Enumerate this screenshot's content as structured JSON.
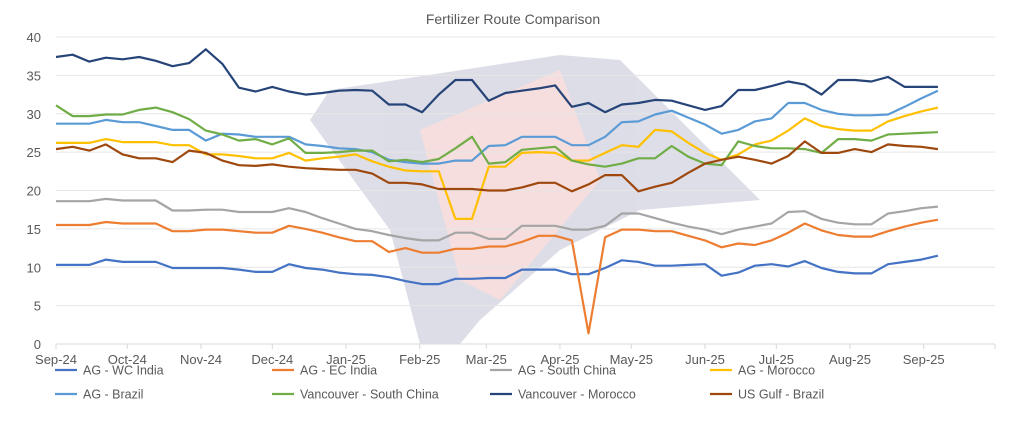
{
  "chart_data": {
    "type": "line",
    "title": "Fertilizer Route Comparison",
    "xlabel": "",
    "ylabel": "",
    "ylim": [
      0,
      40
    ],
    "y_ticks": [
      0,
      5,
      10,
      15,
      20,
      25,
      30,
      35,
      40
    ],
    "grid": true,
    "legend_position": "bottom",
    "x_axis": {
      "start_date": "2024-09-01",
      "range_days": [
        0,
        395
      ],
      "point_start_day": 0,
      "point_step_days": 7,
      "ticks": [
        {
          "day": 0,
          "label": "Sep-24"
        },
        {
          "day": 30,
          "label": "Oct-24"
        },
        {
          "day": 61,
          "label": "Nov-24"
        },
        {
          "day": 91,
          "label": "Dec-24"
        },
        {
          "day": 122,
          "label": "Jan-25"
        },
        {
          "day": 153,
          "label": "Feb-25"
        },
        {
          "day": 181,
          "label": "Mar-25"
        },
        {
          "day": 212,
          "label": "Apr-25"
        },
        {
          "day": 242,
          "label": "May-25"
        },
        {
          "day": 273,
          "label": "Jun-25"
        },
        {
          "day": 303,
          "label": "Jul-25"
        },
        {
          "day": 334,
          "label": "Aug-25"
        },
        {
          "day": 365,
          "label": "Sep-25"
        },
        {
          "day": 395,
          "label": ""
        }
      ]
    },
    "series": [
      {
        "name": "AG - WC India",
        "color": "#4472C4",
        "values": [
          10.3,
          10.3,
          10.3,
          11.0,
          10.7,
          10.7,
          10.7,
          9.9,
          9.9,
          9.9,
          9.9,
          9.7,
          9.4,
          9.4,
          10.4,
          9.9,
          9.7,
          9.3,
          9.1,
          9.0,
          8.7,
          8.2,
          7.8,
          7.8,
          8.5,
          8.5,
          8.6,
          8.6,
          9.7,
          9.7,
          9.7,
          9.1,
          9.1,
          9.9,
          10.9,
          10.7,
          10.2,
          10.2,
          10.3,
          10.4,
          8.9,
          9.3,
          10.2,
          10.4,
          10.1,
          10.8,
          9.9,
          9.4,
          9.2,
          9.2,
          10.4,
          10.7,
          11.0,
          11.5
        ]
      },
      {
        "name": "AG - EC India",
        "color": "#ED7D31",
        "values": [
          15.5,
          15.5,
          15.5,
          15.9,
          15.7,
          15.7,
          15.7,
          14.7,
          14.7,
          14.9,
          14.9,
          14.7,
          14.5,
          14.5,
          15.4,
          15.0,
          14.5,
          13.9,
          13.4,
          13.4,
          12.0,
          12.5,
          11.9,
          11.9,
          12.4,
          12.4,
          12.7,
          12.7,
          13.3,
          14.1,
          14.1,
          13.5,
          1.4,
          13.9,
          14.9,
          14.9,
          14.7,
          14.7,
          14.1,
          13.5,
          12.6,
          13.1,
          12.9,
          13.5,
          14.5,
          15.7,
          14.8,
          14.2,
          14.0,
          14.0,
          14.7,
          15.3,
          15.8,
          16.2
        ]
      },
      {
        "name": "AG - South China",
        "color": "#A5A5A5",
        "values": [
          18.6,
          18.6,
          18.6,
          18.9,
          18.7,
          18.7,
          18.7,
          17.4,
          17.4,
          17.5,
          17.5,
          17.2,
          17.2,
          17.2,
          17.7,
          17.2,
          16.4,
          15.7,
          15.0,
          14.7,
          14.2,
          13.8,
          13.5,
          13.5,
          14.5,
          14.5,
          13.7,
          13.7,
          15.4,
          15.4,
          15.4,
          14.9,
          14.9,
          15.4,
          17.0,
          17.0,
          16.4,
          15.8,
          15.3,
          14.9,
          14.3,
          14.9,
          15.3,
          15.7,
          17.2,
          17.3,
          16.3,
          15.8,
          15.6,
          15.6,
          17.0,
          17.3,
          17.7,
          17.9
        ]
      },
      {
        "name": "AG - Morocco",
        "color": "#FFC000",
        "values": [
          26.2,
          26.2,
          26.2,
          26.7,
          26.3,
          26.3,
          26.3,
          25.9,
          25.9,
          24.7,
          24.7,
          24.5,
          24.2,
          24.2,
          24.9,
          23.9,
          24.2,
          24.4,
          24.7,
          23.8,
          23.1,
          22.6,
          22.5,
          22.5,
          16.3,
          16.3,
          23.1,
          23.1,
          24.9,
          25.0,
          24.9,
          23.9,
          23.9,
          24.9,
          25.9,
          25.7,
          27.9,
          27.7,
          26.2,
          24.9,
          24.0,
          24.7,
          26.0,
          26.5,
          27.8,
          29.4,
          28.4,
          28.0,
          27.8,
          27.8,
          29.0,
          29.7,
          30.3,
          30.8
        ]
      },
      {
        "name": "AG - Brazil",
        "color": "#5B9BD5",
        "values": [
          28.7,
          28.7,
          28.7,
          29.2,
          28.9,
          28.9,
          28.4,
          27.9,
          27.9,
          26.5,
          27.4,
          27.3,
          27.0,
          27.0,
          27.0,
          26.0,
          25.8,
          25.5,
          25.4,
          25.0,
          24.0,
          23.7,
          23.5,
          23.5,
          23.9,
          23.9,
          25.8,
          25.9,
          27.0,
          27.0,
          27.0,
          25.9,
          25.9,
          27.0,
          28.9,
          29.0,
          29.9,
          30.4,
          29.5,
          28.6,
          27.4,
          27.9,
          29.0,
          29.4,
          31.4,
          31.4,
          30.5,
          30.0,
          29.8,
          29.8,
          29.9,
          30.9,
          32.0,
          33.0
        ]
      },
      {
        "name": "Vancouver - South China",
        "color": "#70AD47",
        "values": [
          31.1,
          29.7,
          29.7,
          29.9,
          29.9,
          30.5,
          30.8,
          30.2,
          29.3,
          27.8,
          27.3,
          26.5,
          26.7,
          26.0,
          26.8,
          24.9,
          24.9,
          25.0,
          25.2,
          25.2,
          23.8,
          24.0,
          23.7,
          24.1,
          25.5,
          27.0,
          23.5,
          23.7,
          25.3,
          25.5,
          25.7,
          23.9,
          23.4,
          23.1,
          23.5,
          24.2,
          24.2,
          25.8,
          24.4,
          23.5,
          23.3,
          26.4,
          25.8,
          25.5,
          25.5,
          25.4,
          24.9,
          26.7,
          26.7,
          26.5,
          27.3,
          27.4,
          27.5,
          27.6
        ]
      },
      {
        "name": "Vancouver - Morocco",
        "color": "#264478",
        "values": [
          37.4,
          37.7,
          36.8,
          37.3,
          37.1,
          37.4,
          36.9,
          36.2,
          36.6,
          38.4,
          36.5,
          33.4,
          32.9,
          33.5,
          32.9,
          32.5,
          32.7,
          33.0,
          33.1,
          33.0,
          31.2,
          31.2,
          30.2,
          32.5,
          34.4,
          34.4,
          31.7,
          32.7,
          33.0,
          33.3,
          33.7,
          30.9,
          31.4,
          30.2,
          31.2,
          31.4,
          31.8,
          31.7,
          31.1,
          30.5,
          31.0,
          33.1,
          33.1,
          33.6,
          34.2,
          33.8,
          32.5,
          34.4,
          34.4,
          34.2,
          34.8,
          33.5,
          33.5,
          33.5
        ]
      },
      {
        "name": "US Gulf - Brazil",
        "color": "#9E480E",
        "values": [
          25.4,
          25.7,
          25.2,
          26.0,
          24.7,
          24.2,
          24.2,
          23.7,
          25.2,
          24.9,
          23.9,
          23.3,
          23.2,
          23.4,
          23.1,
          22.9,
          22.8,
          22.7,
          22.7,
          22.2,
          21.0,
          21.0,
          20.8,
          20.2,
          20.2,
          20.2,
          20.0,
          20.0,
          20.4,
          21.0,
          21.0,
          19.9,
          20.8,
          22.0,
          22.0,
          19.9,
          20.5,
          21.0,
          22.3,
          23.5,
          24.0,
          24.4,
          24.0,
          23.5,
          24.5,
          26.4,
          24.9,
          24.9,
          25.4,
          25.0,
          26.0,
          25.8,
          25.7,
          25.4
        ]
      }
    ]
  }
}
